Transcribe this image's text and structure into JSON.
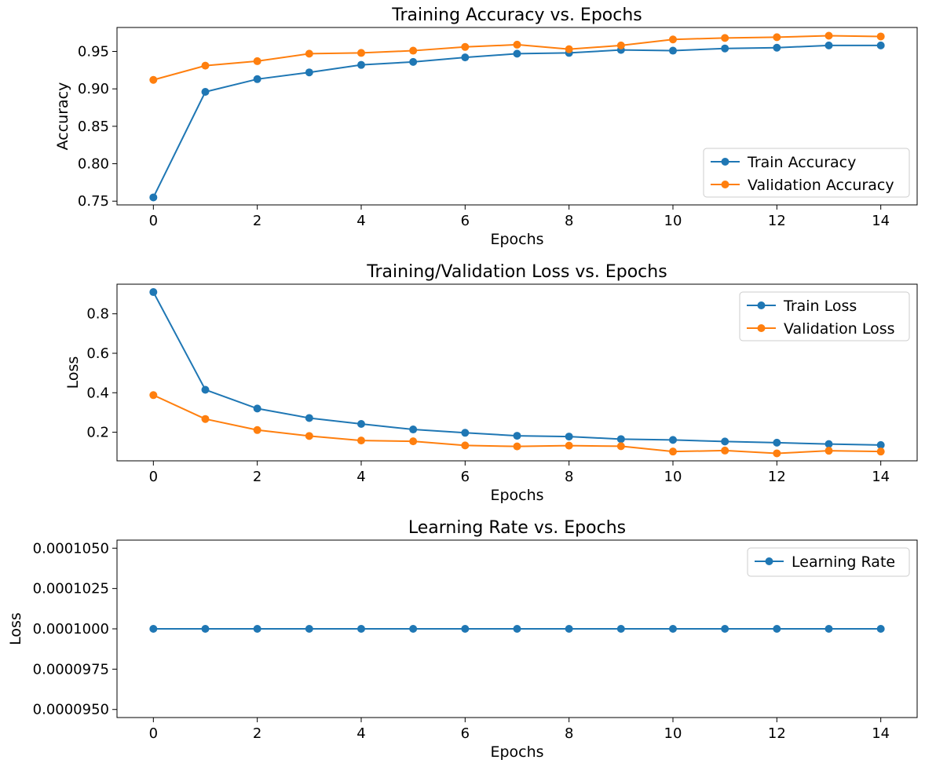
{
  "chart_data": [
    {
      "type": "line",
      "title": "Training Accuracy vs. Epochs",
      "xlabel": "Epochs",
      "ylabel": "Accuracy",
      "x": [
        0,
        1,
        2,
        3,
        4,
        5,
        6,
        7,
        8,
        9,
        10,
        11,
        12,
        13,
        14
      ],
      "xlim": [
        -0.7,
        14.7
      ],
      "ylim": [
        0.745,
        0.982
      ],
      "xticks": [
        0,
        2,
        4,
        6,
        8,
        10,
        12,
        14
      ],
      "yticks": [
        0.75,
        0.8,
        0.85,
        0.9,
        0.95
      ],
      "ytick_labels": [
        "0.75",
        "0.80",
        "0.85",
        "0.90",
        "0.95"
      ],
      "legend_position": "lower-right",
      "grid": false,
      "series": [
        {
          "name": "Train Accuracy",
          "color": "#1f77b4",
          "values": [
            0.755,
            0.896,
            0.913,
            0.922,
            0.932,
            0.936,
            0.942,
            0.947,
            0.948,
            0.952,
            0.951,
            0.954,
            0.955,
            0.958,
            0.958
          ]
        },
        {
          "name": "Validation Accuracy",
          "color": "#ff7f0e",
          "values": [
            0.912,
            0.931,
            0.937,
            0.947,
            0.948,
            0.951,
            0.956,
            0.959,
            0.953,
            0.958,
            0.966,
            0.968,
            0.969,
            0.971,
            0.97
          ]
        }
      ]
    },
    {
      "type": "line",
      "title": "Training/Validation Loss vs. Epochs",
      "xlabel": "Epochs",
      "ylabel": "Loss",
      "x": [
        0,
        1,
        2,
        3,
        4,
        5,
        6,
        7,
        8,
        9,
        10,
        11,
        12,
        13,
        14
      ],
      "xlim": [
        -0.7,
        14.7
      ],
      "ylim": [
        0.055,
        0.95
      ],
      "xticks": [
        0,
        2,
        4,
        6,
        8,
        10,
        12,
        14
      ],
      "yticks": [
        0.2,
        0.4,
        0.6,
        0.8
      ],
      "ytick_labels": [
        "0.2",
        "0.4",
        "0.6",
        "0.8"
      ],
      "legend_position": "upper-right",
      "grid": false,
      "series": [
        {
          "name": "Train Loss",
          "color": "#1f77b4",
          "values": [
            0.91,
            0.415,
            0.32,
            0.272,
            0.242,
            0.214,
            0.197,
            0.182,
            0.178,
            0.165,
            0.161,
            0.153,
            0.147,
            0.14,
            0.135
          ]
        },
        {
          "name": "Validation Loss",
          "color": "#ff7f0e",
          "values": [
            0.388,
            0.267,
            0.211,
            0.181,
            0.158,
            0.154,
            0.133,
            0.128,
            0.132,
            0.129,
            0.102,
            0.107,
            0.093,
            0.106,
            0.102
          ]
        }
      ]
    },
    {
      "type": "line",
      "title": "Learning Rate vs. Epochs",
      "xlabel": "Epochs",
      "ylabel": "Loss",
      "x": [
        0,
        1,
        2,
        3,
        4,
        5,
        6,
        7,
        8,
        9,
        10,
        11,
        12,
        13,
        14
      ],
      "xlim": [
        -0.7,
        14.7
      ],
      "ylim": [
        9.45e-05,
        0.0001055
      ],
      "xticks": [
        0,
        2,
        4,
        6,
        8,
        10,
        12,
        14
      ],
      "yticks": [
        9.5e-05,
        9.75e-05,
        0.0001,
        0.0001025,
        0.000105
      ],
      "ytick_labels": [
        "0.0000950",
        "0.0000975",
        "0.0001000",
        "0.0001025",
        "0.0001050"
      ],
      "legend_position": "upper-right",
      "grid": false,
      "series": [
        {
          "name": "Learning Rate",
          "color": "#1f77b4",
          "values": [
            0.0001,
            0.0001,
            0.0001,
            0.0001,
            0.0001,
            0.0001,
            0.0001,
            0.0001,
            0.0001,
            0.0001,
            0.0001,
            0.0001,
            0.0001,
            0.0001,
            0.0001
          ]
        }
      ]
    }
  ]
}
